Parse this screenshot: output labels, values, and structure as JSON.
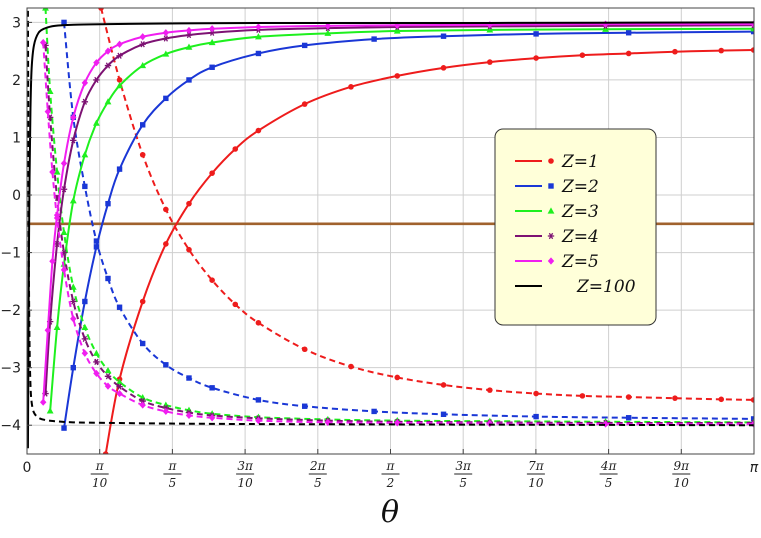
{
  "chart_data": {
    "type": "line",
    "title": "",
    "xlabel": "θ",
    "ylabel": "",
    "xlim": [
      0,
      3.1416
    ],
    "ylim": [
      -4.5,
      3.25
    ],
    "grid": true,
    "legend_position": "right",
    "y_ticks": [
      {
        "value": 3,
        "label": "3"
      },
      {
        "value": 2,
        "label": "2"
      },
      {
        "value": 1,
        "label": "1"
      },
      {
        "value": 0,
        "label": "0"
      },
      {
        "value": -1,
        "label": "−1"
      },
      {
        "value": -2,
        "label": "−2"
      },
      {
        "value": -3,
        "label": "−3"
      },
      {
        "value": -4,
        "label": "−4"
      }
    ],
    "x_ticks": [
      {
        "value": 0,
        "label": "0"
      },
      {
        "value": 0.314159,
        "num": "π",
        "den": "10"
      },
      {
        "value": 0.628319,
        "num": "π",
        "den": "5"
      },
      {
        "value": 0.942478,
        "num": "3π",
        "den": "10"
      },
      {
        "value": 1.256637,
        "num": "2π",
        "den": "5"
      },
      {
        "value": 1.570796,
        "num": "π",
        "den": "2"
      },
      {
        "value": 1.884956,
        "num": "3π",
        "den": "5"
      },
      {
        "value": 2.199115,
        "num": "7π",
        "den": "10"
      },
      {
        "value": 2.513274,
        "num": "4π",
        "den": "5"
      },
      {
        "value": 2.827433,
        "num": "9π",
        "den": "10"
      },
      {
        "value": 3.141593,
        "label": "π"
      }
    ],
    "reference_line": {
      "y": -0.5,
      "color": "#a0622d"
    },
    "series": [
      {
        "name": "Z=1",
        "color": "#ee1c1c",
        "marker": "circle",
        "solid": {
          "x": [
            0.34,
            0.4,
            0.5,
            0.6,
            0.7,
            0.8,
            0.9,
            1.0,
            1.2,
            1.4,
            1.6,
            1.8,
            2.0,
            2.2,
            2.4,
            2.6,
            2.8,
            3.0,
            3.14
          ],
          "y": [
            -4.5,
            -3.2,
            -1.85,
            -0.85,
            -0.15,
            0.38,
            0.8,
            1.12,
            1.58,
            1.88,
            2.07,
            2.21,
            2.31,
            2.38,
            2.43,
            2.46,
            2.49,
            2.51,
            2.52
          ]
        },
        "dashed": {
          "x": [
            0.32,
            0.4,
            0.5,
            0.6,
            0.7,
            0.8,
            0.9,
            1.0,
            1.2,
            1.4,
            1.6,
            1.8,
            2.0,
            2.2,
            2.4,
            2.6,
            2.8,
            3.0,
            3.14
          ],
          "y": [
            3.25,
            2.0,
            0.7,
            -0.25,
            -0.95,
            -1.48,
            -1.9,
            -2.22,
            -2.68,
            -2.98,
            -3.17,
            -3.3,
            -3.39,
            -3.45,
            -3.49,
            -3.51,
            -3.53,
            -3.55,
            -3.56
          ]
        }
      },
      {
        "name": "Z=2",
        "color": "#1a37d6",
        "marker": "square",
        "solid": {
          "x": [
            0.16,
            0.2,
            0.25,
            0.3,
            0.35,
            0.4,
            0.5,
            0.6,
            0.7,
            0.8,
            1.0,
            1.2,
            1.5,
            1.8,
            2.2,
            2.6,
            3.14
          ],
          "y": [
            -4.05,
            -3.0,
            -1.85,
            -0.9,
            -0.15,
            0.45,
            1.22,
            1.68,
            2.0,
            2.22,
            2.46,
            2.6,
            2.71,
            2.76,
            2.8,
            2.82,
            2.84
          ]
        },
        "dashed": {
          "x": [
            0.16,
            0.2,
            0.25,
            0.3,
            0.35,
            0.4,
            0.5,
            0.6,
            0.7,
            0.8,
            1.0,
            1.2,
            1.5,
            1.8,
            2.2,
            2.6,
            3.14
          ],
          "y": [
            3.0,
            1.35,
            0.15,
            -0.8,
            -1.45,
            -1.95,
            -2.58,
            -2.95,
            -3.18,
            -3.35,
            -3.56,
            -3.67,
            -3.76,
            -3.81,
            -3.85,
            -3.87,
            -3.89
          ]
        }
      },
      {
        "name": "Z=3",
        "color": "#1ef01e",
        "marker": "triangle",
        "solid": {
          "x": [
            0.1,
            0.13,
            0.16,
            0.2,
            0.25,
            0.3,
            0.35,
            0.4,
            0.5,
            0.6,
            0.7,
            0.8,
            1.0,
            1.3,
            1.6,
            2.0,
            2.5,
            3.14
          ],
          "y": [
            -3.75,
            -2.3,
            -1.2,
            -0.1,
            0.7,
            1.25,
            1.62,
            1.9,
            2.25,
            2.45,
            2.57,
            2.65,
            2.75,
            2.81,
            2.85,
            2.87,
            2.88,
            2.89
          ]
        },
        "dashed": {
          "x": [
            0.08,
            0.1,
            0.13,
            0.16,
            0.2,
            0.25,
            0.3,
            0.35,
            0.4,
            0.5,
            0.6,
            0.7,
            0.8,
            1.0,
            1.3,
            1.6,
            2.0,
            2.5,
            3.14
          ],
          "y": [
            3.25,
            1.8,
            0.4,
            -0.65,
            -1.6,
            -2.3,
            -2.75,
            -3.05,
            -3.25,
            -3.52,
            -3.65,
            -3.74,
            -3.8,
            -3.86,
            -3.9,
            -3.92,
            -3.93,
            -3.94,
            -3.95
          ]
        }
      },
      {
        "name": "Z=4",
        "color": "#7d1273",
        "marker": "asterisk",
        "solid": {
          "x": [
            0.08,
            0.1,
            0.13,
            0.16,
            0.2,
            0.25,
            0.3,
            0.35,
            0.4,
            0.5,
            0.6,
            0.7,
            0.8,
            1.0,
            1.3,
            1.6,
            2.0,
            2.5,
            3.14
          ],
          "y": [
            -3.45,
            -2.2,
            -0.85,
            0.1,
            0.95,
            1.62,
            2.0,
            2.25,
            2.42,
            2.62,
            2.72,
            2.78,
            2.82,
            2.87,
            2.9,
            2.92,
            2.93,
            2.94,
            2.95
          ]
        },
        "dashed": {
          "x": [
            0.08,
            0.1,
            0.13,
            0.16,
            0.2,
            0.25,
            0.3,
            0.35,
            0.4,
            0.5,
            0.6,
            0.7,
            0.8,
            1.0,
            1.3,
            1.6,
            2.0,
            2.5,
            3.14
          ],
          "y": [
            2.6,
            1.35,
            -0.05,
            -1.0,
            -1.85,
            -2.5,
            -2.9,
            -3.15,
            -3.33,
            -3.58,
            -3.7,
            -3.78,
            -3.83,
            -3.88,
            -3.92,
            -3.94,
            -3.95,
            -3.96,
            -3.96
          ]
        }
      },
      {
        "name": "Z=5",
        "color": "#f01ef0",
        "marker": "diamond",
        "solid": {
          "x": [
            0.07,
            0.09,
            0.11,
            0.13,
            0.16,
            0.2,
            0.25,
            0.3,
            0.35,
            0.4,
            0.5,
            0.6,
            0.7,
            0.8,
            1.0,
            1.3,
            1.6,
            2.0,
            2.5,
            3.14
          ],
          "y": [
            -3.6,
            -2.35,
            -1.15,
            -0.35,
            0.55,
            1.35,
            1.95,
            2.3,
            2.5,
            2.62,
            2.75,
            2.82,
            2.86,
            2.89,
            2.92,
            2.94,
            2.95,
            2.96,
            2.97,
            2.97
          ]
        },
        "dashed": {
          "x": [
            0.07,
            0.09,
            0.11,
            0.13,
            0.16,
            0.2,
            0.25,
            0.3,
            0.35,
            0.4,
            0.5,
            0.6,
            0.7,
            0.8,
            1.0,
            1.3,
            1.6,
            2.0,
            2.5,
            3.14
          ],
          "y": [
            2.65,
            1.45,
            0.4,
            -0.4,
            -1.3,
            -2.15,
            -2.75,
            -3.1,
            -3.32,
            -3.45,
            -3.65,
            -3.76,
            -3.83,
            -3.87,
            -3.92,
            -3.95,
            -3.96,
            -3.97,
            -3.98,
            -3.98
          ]
        }
      },
      {
        "name": "Z=100",
        "color": "#000000",
        "marker": "none",
        "solid": {
          "x": [
            0.004,
            0.006,
            0.008,
            0.011,
            0.015,
            0.02,
            0.03,
            0.05,
            0.08,
            0.12,
            0.2,
            0.35,
            0.6,
            1.0,
            2.0,
            3.14
          ],
          "y": [
            -4.4,
            -2.8,
            -1.2,
            0.3,
            1.5,
            2.2,
            2.6,
            2.82,
            2.9,
            2.94,
            2.96,
            2.97,
            2.98,
            2.99,
            2.99,
            3.0
          ]
        },
        "dashed": {
          "x": [
            0.004,
            0.006,
            0.008,
            0.011,
            0.015,
            0.02,
            0.03,
            0.05,
            0.08,
            0.12,
            0.2,
            0.35,
            0.6,
            1.0,
            2.0,
            3.14
          ],
          "y": [
            3.2,
            0.8,
            -1.2,
            -2.6,
            -3.3,
            -3.6,
            -3.78,
            -3.87,
            -3.91,
            -3.93,
            -3.95,
            -3.96,
            -3.97,
            -3.98,
            -3.99,
            -4.0
          ]
        }
      }
    ]
  }
}
